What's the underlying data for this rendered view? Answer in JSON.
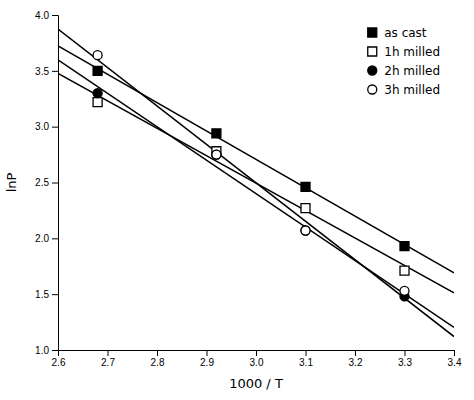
{
  "chart_data": {
    "type": "scatter",
    "xlabel": "1000 / T",
    "ylabel": "lnP",
    "xlim": [
      2.6,
      3.4
    ],
    "ylim": [
      1.0,
      4.0
    ],
    "xticks": [
      2.6,
      2.7,
      2.8,
      2.9,
      {
        "value": 3,
        "label": "3.0"
      },
      3.1,
      3.2,
      3.3,
      3.4
    ],
    "yticks": [
      {
        "value": 1,
        "label": "1.0"
      },
      1.5,
      {
        "value": 2,
        "label": "2.0"
      },
      2.5,
      {
        "value": 3,
        "label": "3.0"
      },
      3.5,
      {
        "value": 4,
        "label": "4.0"
      }
    ],
    "legend": "upper right",
    "series": [
      {
        "name": "as cast",
        "color": "black",
        "marker": "square",
        "x": [
          2.68,
          2.92,
          3.1,
          3.3
        ],
        "values": [
          3.5,
          2.94,
          2.46,
          1.93
        ],
        "fit": {
          "x": [
            2.6,
            3.4
          ],
          "values": [
            3.7232,
            1.6918
          ]
        }
      },
      {
        "name": "1h milled",
        "color": "black",
        "marker": "square-open",
        "x": [
          2.68,
          2.92,
          3.1,
          3.3
        ],
        "values": [
          3.22,
          2.78,
          2.27,
          1.71
        ],
        "fit": {
          "x": [
            2.6,
            3.4
          ],
          "values": [
            3.4774,
            1.5126
          ]
        }
      },
      {
        "name": "2h milled",
        "color": "black",
        "marker": "circle",
        "x": [
          2.68,
          2.92,
          3.1,
          3.3
        ],
        "values": [
          3.3,
          2.75,
          2.07,
          1.48
        ],
        "fit": {
          "x": [
            2.6,
            3.4
          ],
          "values": [
            3.5973,
            1.2027
          ]
        }
      },
      {
        "name": "3h milled",
        "color": "black",
        "marker": "circle-open",
        "x": [
          2.68,
          2.92,
          3.1,
          3.3
        ],
        "values": [
          3.64,
          2.75,
          2.07,
          1.53
        ],
        "fit": {
          "x": [
            2.6,
            3.4
          ],
          "values": [
            3.8745,
            1.1205
          ]
        }
      }
    ]
  }
}
